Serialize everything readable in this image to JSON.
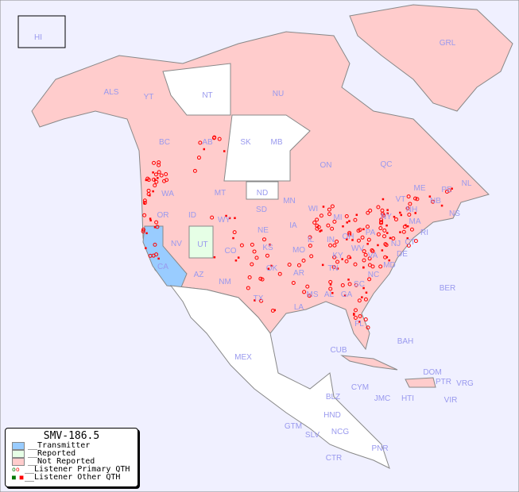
{
  "legend": {
    "title": "SMV-186.5",
    "items": [
      {
        "label": "__Transmitter",
        "color": "#99ccff"
      },
      {
        "label": "__Reported",
        "color": "#e6ffe6"
      },
      {
        "label": "__Not Reported",
        "color": "#ffcccc"
      },
      {
        "label": "__Listener Primary QTH",
        "icon": "open-circle"
      },
      {
        "label": "__Listener Other QTH",
        "icon": "filled-square"
      }
    ]
  },
  "colors": {
    "ocean": "#f0f0ff",
    "not_reported": "#ffcccc",
    "reported": "#e6ffe6",
    "transmitter": "#99ccff",
    "unlisted": "#ffffff",
    "marker": "#ff0000",
    "label": "#9999ee"
  },
  "regions": [
    "HI",
    "ALS",
    "YT",
    "NT",
    "NU",
    "GRL",
    "BC",
    "AB",
    "SK",
    "MB",
    "ON",
    "QC",
    "NL",
    "NS",
    "NB",
    "PE",
    "WA",
    "OR",
    "ID",
    "MT",
    "ND",
    "MN",
    "WI",
    "SD",
    "WY",
    "NE",
    "IA",
    "IL",
    "IN",
    "OH",
    "MI",
    "PA",
    "NY",
    "VT",
    "NH",
    "ME",
    "MA",
    "RI",
    "CT",
    "NJ",
    "DE",
    "MD",
    "NV",
    "UT",
    "CO",
    "KS",
    "MO",
    "KY",
    "WV",
    "VA",
    "CA",
    "AZ",
    "NM",
    "OK",
    "AR",
    "TN",
    "NC",
    "SC",
    "GA",
    "AL",
    "MS",
    "LA",
    "TX",
    "FL",
    "MEX",
    "CUB",
    "BAH",
    "DOM",
    "PTR",
    "VRG",
    "CYM",
    "JMC",
    "HTI",
    "VIR",
    "BER",
    "BLZ",
    "GTM",
    "HND",
    "SLV",
    "NCG",
    "CTR",
    "PNR"
  ]
}
